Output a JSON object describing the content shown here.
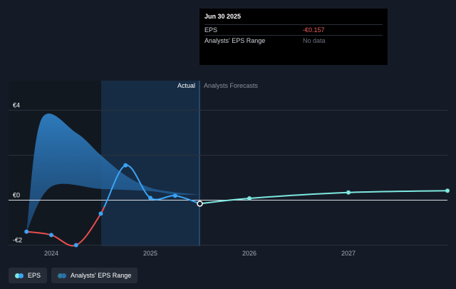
{
  "chart_data": {
    "type": "line",
    "y_tick_labels": [
      "€4",
      "€0",
      "-€2"
    ],
    "x_tick_labels": [
      "2024",
      "2025",
      "2026",
      "2027"
    ],
    "ylim": [
      -2,
      4
    ],
    "section_labels": {
      "actual": "Actual",
      "forecast": "Analysts Forecasts"
    },
    "series": [
      {
        "name": "EPS",
        "color": "#e84d4d",
        "points": [
          {
            "x": 2023.75,
            "y": -1.4
          },
          {
            "x": 2024.0,
            "y": -1.55
          },
          {
            "x": 2024.25,
            "y": -2.0
          },
          {
            "x": 2024.5,
            "y": -0.6
          },
          {
            "x": 2024.75,
            "y": 1.55
          },
          {
            "x": 2025.0,
            "y": 0.1
          },
          {
            "x": 2025.25,
            "y": 0.2
          },
          {
            "x": 2025.5,
            "y": -0.157
          }
        ]
      },
      {
        "name": "EPS Forecast",
        "color": "#7de8e0",
        "points": [
          {
            "x": 2025.5,
            "y": -0.157
          },
          {
            "x": 2026.0,
            "y": 0.08
          },
          {
            "x": 2027.0,
            "y": 0.34
          },
          {
            "x": 2028.0,
            "y": 0.42
          }
        ]
      },
      {
        "name": "Analysts' EPS Range",
        "color": "#2a6fa8",
        "upper": [
          {
            "x": 2023.75,
            "y": -1.4
          },
          {
            "x": 2023.9,
            "y": 3.6
          },
          {
            "x": 2024.25,
            "y": 3.0
          },
          {
            "x": 2024.5,
            "y": 2.0
          },
          {
            "x": 2024.75,
            "y": 1.1
          },
          {
            "x": 2025.0,
            "y": 0.55
          },
          {
            "x": 2025.25,
            "y": 0.35
          },
          {
            "x": 2025.5,
            "y": 0.25
          }
        ],
        "lower": [
          {
            "x": 2025.5,
            "y": 0.25
          },
          {
            "x": 2025.25,
            "y": 0.25
          },
          {
            "x": 2025.0,
            "y": 0.4
          },
          {
            "x": 2024.5,
            "y": 0.5
          },
          {
            "x": 2024.0,
            "y": 0.6
          },
          {
            "x": 2023.75,
            "y": -1.4
          }
        ]
      }
    ]
  },
  "tooltip": {
    "date": "Jun 30 2025",
    "eps_label": "EPS",
    "eps_value": "-€0.157",
    "range_label": "Analysts' EPS Range",
    "range_value": "No data"
  },
  "legend": {
    "eps_label": "EPS",
    "range_label": "Analysts' EPS Range",
    "eps_colors": [
      "#7de8e0",
      "#3ba3f5"
    ],
    "range_colors": [
      "#2e7a9a",
      "#2a6fa8"
    ]
  }
}
